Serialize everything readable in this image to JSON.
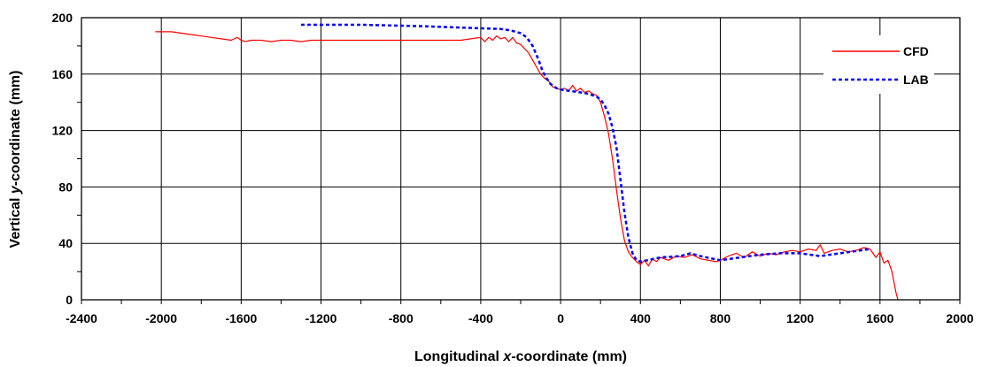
{
  "chart_data": {
    "type": "line",
    "xlabel_parts": [
      "Longitudinal ",
      "x",
      "-coordinate (mm)"
    ],
    "ylabel_parts": [
      "Vertical ",
      "y",
      "-coordinate (mm)"
    ],
    "xlim": [
      -2400,
      2000
    ],
    "ylim": [
      0,
      200
    ],
    "xticks": [
      -2400,
      -2000,
      -1600,
      -1200,
      -800,
      -400,
      0,
      400,
      800,
      1200,
      1600,
      2000
    ],
    "yticks": [
      0,
      40,
      80,
      120,
      160,
      200
    ],
    "grid": true,
    "legend_position": "top-right",
    "series": [
      {
        "name": "CFD",
        "color": "#ff0000",
        "style": "solid",
        "points": [
          [
            -2030,
            190
          ],
          [
            -1950,
            190
          ],
          [
            -1900,
            189
          ],
          [
            -1850,
            188
          ],
          [
            -1800,
            187
          ],
          [
            -1750,
            186
          ],
          [
            -1700,
            185
          ],
          [
            -1650,
            184
          ],
          [
            -1620,
            186
          ],
          [
            -1600,
            184
          ],
          [
            -1580,
            183
          ],
          [
            -1550,
            184
          ],
          [
            -1500,
            184
          ],
          [
            -1450,
            183
          ],
          [
            -1400,
            184
          ],
          [
            -1350,
            184
          ],
          [
            -1300,
            183
          ],
          [
            -1250,
            184
          ],
          [
            -1200,
            184
          ],
          [
            -1100,
            184
          ],
          [
            -1000,
            184
          ],
          [
            -900,
            184
          ],
          [
            -800,
            184
          ],
          [
            -700,
            184
          ],
          [
            -600,
            184
          ],
          [
            -500,
            184
          ],
          [
            -450,
            185
          ],
          [
            -400,
            186
          ],
          [
            -380,
            183
          ],
          [
            -360,
            186
          ],
          [
            -340,
            184
          ],
          [
            -320,
            187
          ],
          [
            -300,
            185
          ],
          [
            -280,
            186
          ],
          [
            -260,
            183
          ],
          [
            -240,
            186
          ],
          [
            -220,
            182
          ],
          [
            -200,
            181
          ],
          [
            -180,
            178
          ],
          [
            -160,
            175
          ],
          [
            -140,
            170
          ],
          [
            -120,
            165
          ],
          [
            -100,
            160
          ],
          [
            -80,
            157
          ],
          [
            -60,
            155
          ],
          [
            -40,
            151
          ],
          [
            -20,
            150
          ],
          [
            0,
            149
          ],
          [
            20,
            150
          ],
          [
            40,
            148
          ],
          [
            60,
            152
          ],
          [
            80,
            148
          ],
          [
            100,
            150
          ],
          [
            120,
            147
          ],
          [
            140,
            148
          ],
          [
            160,
            146
          ],
          [
            180,
            145
          ],
          [
            200,
            140
          ],
          [
            220,
            130
          ],
          [
            240,
            118
          ],
          [
            260,
            100
          ],
          [
            280,
            78
          ],
          [
            300,
            58
          ],
          [
            320,
            42
          ],
          [
            340,
            34
          ],
          [
            360,
            30
          ],
          [
            380,
            27
          ],
          [
            400,
            25
          ],
          [
            420,
            28
          ],
          [
            440,
            24
          ],
          [
            460,
            29
          ],
          [
            480,
            27
          ],
          [
            500,
            30
          ],
          [
            540,
            28
          ],
          [
            580,
            31
          ],
          [
            620,
            30
          ],
          [
            660,
            32
          ],
          [
            700,
            29
          ],
          [
            740,
            28
          ],
          [
            780,
            27
          ],
          [
            800,
            28
          ],
          [
            840,
            31
          ],
          [
            880,
            33
          ],
          [
            920,
            30
          ],
          [
            960,
            34
          ],
          [
            1000,
            31
          ],
          [
            1040,
            33
          ],
          [
            1080,
            32
          ],
          [
            1120,
            34
          ],
          [
            1160,
            35
          ],
          [
            1200,
            34
          ],
          [
            1240,
            36
          ],
          [
            1280,
            35
          ],
          [
            1300,
            39
          ],
          [
            1320,
            33
          ],
          [
            1360,
            35
          ],
          [
            1400,
            36
          ],
          [
            1440,
            34
          ],
          [
            1480,
            35
          ],
          [
            1520,
            37
          ],
          [
            1550,
            36
          ],
          [
            1580,
            30
          ],
          [
            1600,
            34
          ],
          [
            1620,
            26
          ],
          [
            1640,
            28
          ],
          [
            1660,
            20
          ],
          [
            1680,
            5
          ],
          [
            1690,
            0
          ]
        ]
      },
      {
        "name": "LAB",
        "color": "#0000ff",
        "style": "dotted",
        "points": [
          [
            -1300,
            195
          ],
          [
            -1000,
            195
          ],
          [
            -700,
            194
          ],
          [
            -500,
            193
          ],
          [
            -300,
            192
          ],
          [
            -250,
            191
          ],
          [
            -200,
            189
          ],
          [
            -170,
            186
          ],
          [
            -140,
            180
          ],
          [
            -110,
            170
          ],
          [
            -90,
            162
          ],
          [
            -70,
            157
          ],
          [
            -50,
            153
          ],
          [
            -20,
            150
          ],
          [
            0,
            149
          ],
          [
            50,
            148
          ],
          [
            100,
            147
          ],
          [
            140,
            146
          ],
          [
            180,
            144
          ],
          [
            200,
            142
          ],
          [
            220,
            138
          ],
          [
            240,
            132
          ],
          [
            260,
            122
          ],
          [
            280,
            108
          ],
          [
            300,
            85
          ],
          [
            320,
            62
          ],
          [
            340,
            44
          ],
          [
            360,
            33
          ],
          [
            380,
            28
          ],
          [
            400,
            27
          ],
          [
            500,
            30
          ],
          [
            600,
            31
          ],
          [
            650,
            33
          ],
          [
            700,
            31
          ],
          [
            800,
            28
          ],
          [
            900,
            30
          ],
          [
            1000,
            32
          ],
          [
            1100,
            33
          ],
          [
            1200,
            33
          ],
          [
            1250,
            32
          ],
          [
            1300,
            31
          ],
          [
            1400,
            33
          ],
          [
            1500,
            35
          ],
          [
            1550,
            36
          ]
        ]
      }
    ]
  }
}
